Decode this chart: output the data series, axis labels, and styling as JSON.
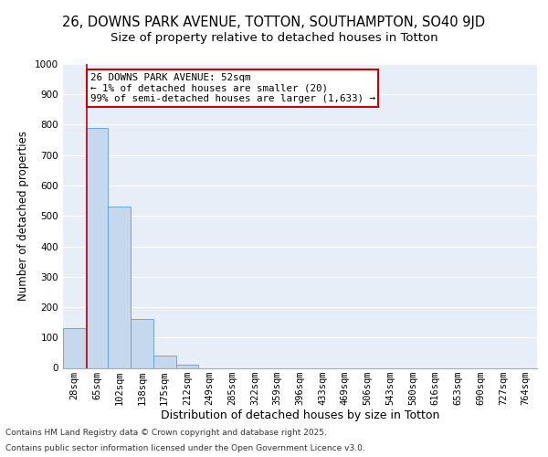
{
  "title_line1": "26, DOWNS PARK AVENUE, TOTTON, SOUTHAMPTON, SO40 9JD",
  "title_line2": "Size of property relative to detached houses in Totton",
  "xlabel": "Distribution of detached houses by size in Totton",
  "ylabel": "Number of detached properties",
  "categories": [
    "28sqm",
    "65sqm",
    "102sqm",
    "138sqm",
    "175sqm",
    "212sqm",
    "249sqm",
    "285sqm",
    "322sqm",
    "359sqm",
    "396sqm",
    "433sqm",
    "469sqm",
    "506sqm",
    "543sqm",
    "580sqm",
    "616sqm",
    "653sqm",
    "690sqm",
    "727sqm",
    "764sqm"
  ],
  "values": [
    130,
    790,
    530,
    160,
    40,
    10,
    0,
    0,
    0,
    0,
    0,
    0,
    0,
    0,
    0,
    0,
    0,
    0,
    0,
    0,
    0
  ],
  "bar_color": "#c5d8ed",
  "bar_edge_color": "#5a9fd4",
  "bg_color": "#e8eef8",
  "grid_color": "#ffffff",
  "annotation_text": "26 DOWNS PARK AVENUE: 52sqm\n← 1% of detached houses are smaller (20)\n99% of semi-detached houses are larger (1,633) →",
  "annotation_box_color": "#ffffff",
  "annotation_box_edge": "#cc0000",
  "vline_color": "#cc0000",
  "vline_x": 0.55,
  "ylim": [
    0,
    1000
  ],
  "yticks": [
    0,
    100,
    200,
    300,
    400,
    500,
    600,
    700,
    800,
    900,
    1000
  ],
  "footnote_line1": "Contains HM Land Registry data © Crown copyright and database right 2025.",
  "footnote_line2": "Contains public sector information licensed under the Open Government Licence v3.0.",
  "title_fontsize": 10.5,
  "subtitle_fontsize": 9.5,
  "tick_fontsize": 7.5,
  "xlabel_fontsize": 9,
  "ylabel_fontsize": 8.5,
  "annot_fontsize": 7.8,
  "footnote_fontsize": 6.5
}
